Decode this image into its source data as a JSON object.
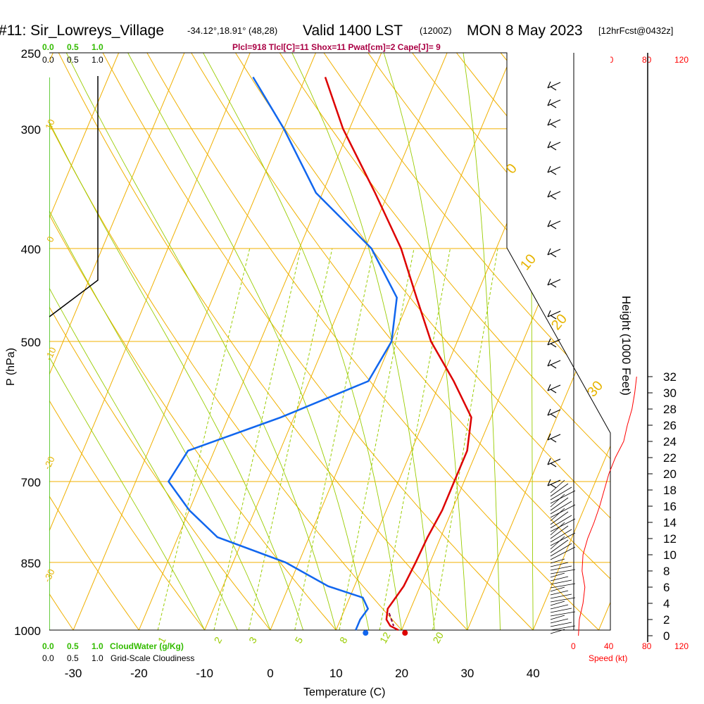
{
  "header": {
    "station": "#11: Sir_Lowreys_Village",
    "coords": "-34.12°,18.91° (48,28)",
    "valid": "Valid 1400 LST",
    "zulu": "(1200Z)",
    "date": "MON 8 May 2023",
    "forecast": "[12hrFcst@0432z]"
  },
  "indices": "Plcl=918 Tlcl[C]=11 Shox=11 Pwat[cm]=2 Cape[J]= 9",
  "colors": {
    "temperature": "#dd0000",
    "dewpoint": "#1166ee",
    "isotherm": "#f0b000",
    "dry_adiabat": "#f0b000",
    "moist_adiabat": "#99cc00",
    "mixing_ratio": "#99cc00",
    "cloud_water": "#33bb00",
    "speed": "#ff0000"
  },
  "cloud_water_scale": {
    "top": [
      "0.0",
      "0.5",
      "1.0"
    ],
    "bottom": [
      "0.0",
      "0.5",
      "1.0"
    ],
    "label": "CloudWater (g/Kg)"
  },
  "cloudiness_scale": {
    "top": [
      "0.0",
      "0.5",
      "1.0"
    ],
    "bottom": [
      "0.0",
      "0.5",
      "1.0"
    ],
    "label": "Grid-Scale Cloudiness"
  },
  "speed_scale": {
    "top": [
      "0",
      "40",
      "80",
      "120"
    ],
    "bottom": [
      "0",
      "40",
      "80",
      "120"
    ],
    "label": "Speed (kt)"
  },
  "chart_data": {
    "type": "line",
    "subtype": "skew-T log-P sounding",
    "xlabel": "Temperature (C)",
    "ylabel": "P (hPa)",
    "right_label": "Height (1000 Feet)",
    "x_ticks": [
      -30,
      -20,
      -10,
      0,
      10,
      20,
      30,
      40
    ],
    "p_ticks": [
      250,
      300,
      400,
      500,
      700,
      850,
      1000
    ],
    "height_ticks": [
      0,
      2,
      4,
      6,
      8,
      10,
      12,
      14,
      16,
      18,
      20,
      22,
      24,
      26,
      28,
      30,
      32
    ],
    "xlim": [
      -33,
      43
    ],
    "plim": [
      1000,
      250
    ],
    "series": [
      {
        "name": "temperature",
        "points": [
          {
            "p": 1000,
            "t": 19.5
          },
          {
            "p": 990,
            "t": 18.0
          },
          {
            "p": 975,
            "t": 17.0
          },
          {
            "p": 950,
            "t": 16.5
          },
          {
            "p": 925,
            "t": 17.0
          },
          {
            "p": 900,
            "t": 17.5
          },
          {
            "p": 850,
            "t": 17.8
          },
          {
            "p": 800,
            "t": 18.0
          },
          {
            "p": 750,
            "t": 18.5
          },
          {
            "p": 700,
            "t": 18.5
          },
          {
            "p": 650,
            "t": 18.5
          },
          {
            "p": 600,
            "t": 17.0
          },
          {
            "p": 550,
            "t": 12.0
          },
          {
            "p": 500,
            "t": 6.0
          },
          {
            "p": 450,
            "t": 1.0
          },
          {
            "p": 400,
            "t": -4.5
          },
          {
            "p": 350,
            "t": -12.0
          },
          {
            "p": 300,
            "t": -21.0
          },
          {
            "p": 265,
            "t": -27.0
          }
        ]
      },
      {
        "name": "dewpoint",
        "points": [
          {
            "p": 1000,
            "t": 13.0
          },
          {
            "p": 975,
            "t": 13.0
          },
          {
            "p": 950,
            "t": 13.5
          },
          {
            "p": 925,
            "t": 12.0
          },
          {
            "p": 900,
            "t": 6.0
          },
          {
            "p": 850,
            "t": -2.0
          },
          {
            "p": 800,
            "t": -14.0
          },
          {
            "p": 750,
            "t": -20.0
          },
          {
            "p": 700,
            "t": -25.0
          },
          {
            "p": 650,
            "t": -24.0
          },
          {
            "p": 600,
            "t": -12.0
          },
          {
            "p": 550,
            "t": -1.0
          },
          {
            "p": 500,
            "t": 0.0
          },
          {
            "p": 450,
            "t": -2.0
          },
          {
            "p": 400,
            "t": -9.0
          },
          {
            "p": 350,
            "t": -21.0
          },
          {
            "p": 300,
            "t": -30.0
          },
          {
            "p": 265,
            "t": -38.0
          }
        ]
      }
    ],
    "surface_markers": [
      {
        "name": "surface temperature",
        "p": 1000,
        "t": 20.5
      },
      {
        "name": "surface dewpoint",
        "p": 1000,
        "t": 14.5
      }
    ],
    "wind_speed_profile_kt": [
      {
        "h": 0,
        "s": 5
      },
      {
        "h": 2,
        "s": 6
      },
      {
        "h": 4,
        "s": 10
      },
      {
        "h": 6,
        "s": 12
      },
      {
        "h": 8,
        "s": 9
      },
      {
        "h": 10,
        "s": 10
      },
      {
        "h": 12,
        "s": 15
      },
      {
        "h": 14,
        "s": 22
      },
      {
        "h": 16,
        "s": 28
      },
      {
        "h": 18,
        "s": 33
      },
      {
        "h": 20,
        "s": 38
      },
      {
        "h": 22,
        "s": 45
      },
      {
        "h": 24,
        "s": 54
      },
      {
        "h": 26,
        "s": 58
      },
      {
        "h": 28,
        "s": 63
      },
      {
        "h": 30,
        "s": 66
      },
      {
        "h": 32,
        "s": 68
      }
    ],
    "isotherm_labels": [
      "10",
      "0",
      "-10",
      "-20",
      "-30",
      "0",
      "10",
      "20",
      "30"
    ],
    "mixing_ratio_labels": [
      "1",
      "2",
      "3",
      "5",
      "8",
      "12",
      "20"
    ]
  }
}
